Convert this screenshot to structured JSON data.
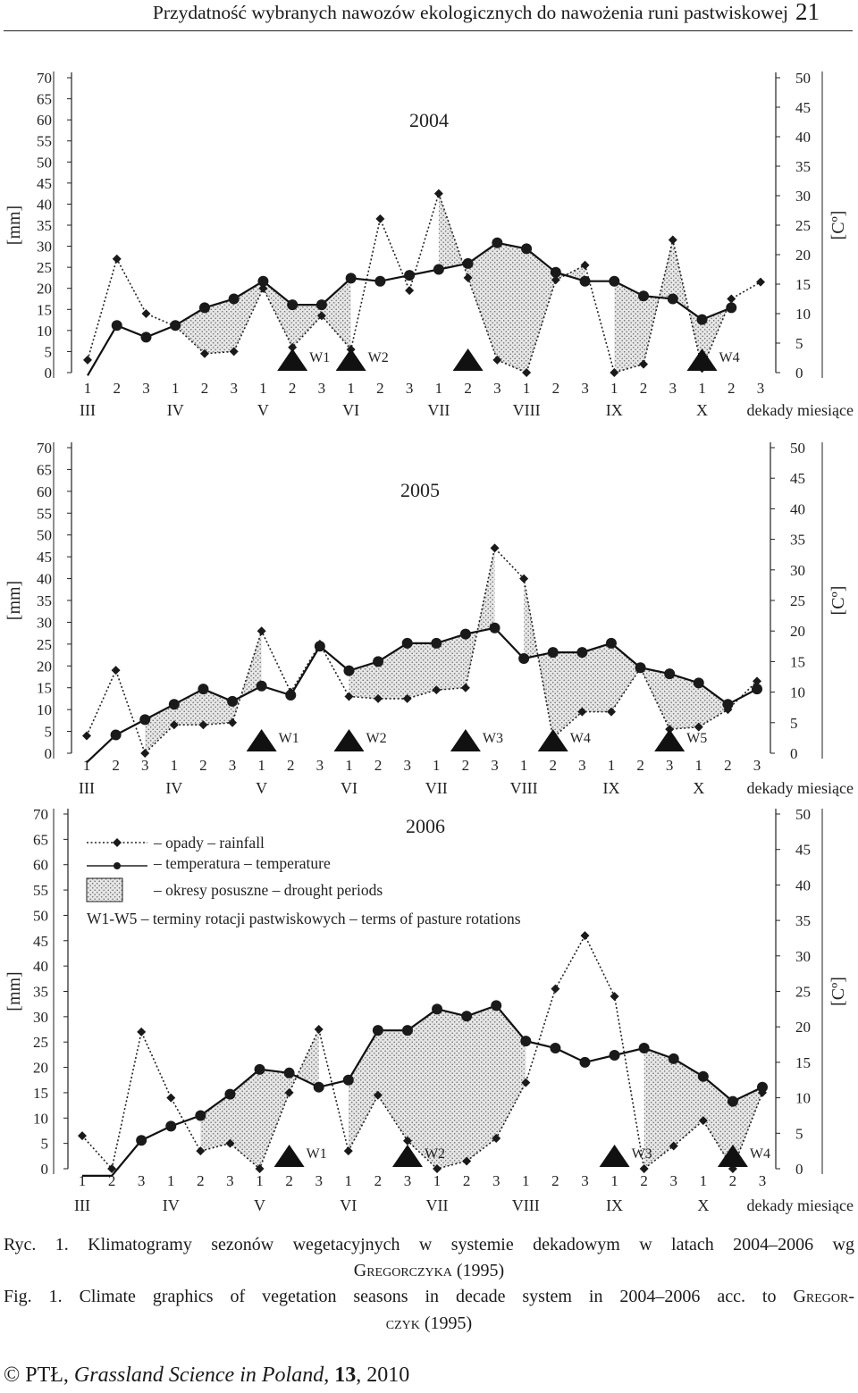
{
  "header": {
    "title": "Przydatność wybranych nawozów ekologicznych do nawożenia runi pastwiskowej",
    "page_number": "21"
  },
  "colors": {
    "ink": "#1a1a1a",
    "drought_fill": "#e4e4e4",
    "drought_dots": "#6a6a6a"
  },
  "icons": {
    "rotation_marker": "triangle-icon"
  },
  "chart_data": [
    {
      "type": "line",
      "title": "2004",
      "ylabel_left": "[mm]",
      "ylabel_right": "[Cº]",
      "ylim_left": [
        0,
        70
      ],
      "ylim_right": [
        0,
        50
      ],
      "yticks_left": [
        0,
        5,
        10,
        15,
        20,
        25,
        30,
        35,
        40,
        45,
        50,
        55,
        60,
        65,
        70
      ],
      "yticks_right": [
        0,
        5,
        10,
        15,
        20,
        25,
        30,
        35,
        40,
        45,
        50
      ],
      "decade_labels": [
        "1",
        "2",
        "3",
        "1",
        "2",
        "3",
        "1",
        "2",
        "3",
        "1",
        "2",
        "3",
        "1",
        "2",
        "3",
        "1",
        "2",
        "3",
        "1",
        "2",
        "3",
        "1",
        "2",
        "3"
      ],
      "month_labels": [
        "III",
        "IV",
        "V",
        "VI",
        "VII",
        "VIII",
        "IX",
        "X"
      ],
      "axis_caption": "dekady miesiące",
      "rainfall_mm": [
        3,
        27,
        14,
        11,
        4.5,
        5,
        20,
        6,
        13.5,
        5.5,
        36.5,
        19.5,
        42.5,
        22.5,
        3,
        0,
        22,
        25.5,
        0,
        2,
        31.5,
        1,
        17.5,
        21.5
      ],
      "temperature_c": [
        -0.5,
        8,
        6,
        8,
        11,
        12.5,
        15.5,
        11.5,
        11.5,
        16,
        15.5,
        16.5,
        17.5,
        18.5,
        22,
        21,
        17,
        15.5,
        15.5,
        13,
        12.5,
        9,
        11,
        null
      ],
      "drought_periods": [
        [
          3,
          9
        ],
        [
          12,
          17
        ],
        [
          18,
          20
        ],
        [
          20,
          22
        ]
      ],
      "rotations": [
        {
          "label": "W1",
          "decade": 7
        },
        {
          "label": "W2",
          "decade": 9
        },
        {
          "label": "",
          "decade": 13
        },
        {
          "label": "W4",
          "decade": 21
        }
      ]
    },
    {
      "type": "line",
      "title": "2005",
      "ylabel_left": "[mm]",
      "ylabel_right": "[Cº]",
      "ylim_left": [
        0,
        70
      ],
      "ylim_right": [
        0,
        50
      ],
      "yticks_left": [
        0,
        5,
        10,
        15,
        20,
        25,
        30,
        35,
        40,
        45,
        50,
        55,
        60,
        65,
        70
      ],
      "yticks_right": [
        0,
        5,
        10,
        15,
        20,
        25,
        30,
        35,
        40,
        45,
        50
      ],
      "decade_labels": [
        "1",
        "2",
        "3",
        "1",
        "2",
        "3",
        "1",
        "2",
        "3",
        "1",
        "2",
        "3",
        "1",
        "2",
        "3",
        "1",
        "2",
        "3",
        "1",
        "2",
        "3",
        "1",
        "2",
        "3"
      ],
      "month_labels": [
        "III",
        "IV",
        "V",
        "VI",
        "VII",
        "VIII",
        "IX",
        "X"
      ],
      "axis_caption": "dekady miesiące",
      "rainfall_mm": [
        4,
        19,
        0,
        6.5,
        6.5,
        7,
        28,
        14,
        25,
        13,
        12.5,
        12.5,
        14.5,
        15,
        47,
        40,
        3.5,
        9.5,
        9.5,
        19.5,
        5.5,
        6,
        10,
        16.5
      ],
      "temperature_c": [
        -1.5,
        3,
        5.5,
        8,
        10.5,
        8.5,
        11,
        9.5,
        17.5,
        13.5,
        15,
        18,
        18,
        19.5,
        20.5,
        15.5,
        16.5,
        16.5,
        18,
        14,
        13,
        11.5,
        8,
        10.5
      ],
      "drought_periods": [
        [
          2,
          6
        ],
        [
          9,
          14
        ],
        [
          15,
          18
        ],
        [
          18,
          22
        ]
      ],
      "rotations": [
        {
          "label": "W1",
          "decade": 6
        },
        {
          "label": "W2",
          "decade": 9
        },
        {
          "label": "W3",
          "decade": 13
        },
        {
          "label": "W4",
          "decade": 16
        },
        {
          "label": "W5",
          "decade": 20
        }
      ]
    },
    {
      "type": "line",
      "title": "2006",
      "ylabel_left": "[mm]",
      "ylabel_right": "[Cº]",
      "ylim_left": [
        0,
        70
      ],
      "ylim_right": [
        0,
        50
      ],
      "yticks_left": [
        0,
        5,
        10,
        15,
        20,
        25,
        30,
        35,
        40,
        45,
        50,
        55,
        60,
        65,
        70
      ],
      "yticks_right": [
        0,
        5,
        10,
        15,
        20,
        25,
        30,
        35,
        40,
        45,
        50
      ],
      "decade_labels": [
        "1",
        "2",
        "3",
        "1",
        "2",
        "3",
        "1",
        "2",
        "3",
        "1",
        "2",
        "3",
        "1",
        "2",
        "3",
        "1",
        "2",
        "3",
        "1",
        "2",
        "3",
        "1",
        "2",
        "3"
      ],
      "month_labels": [
        "III",
        "IV",
        "V",
        "VI",
        "VII",
        "VIII",
        "IX",
        "X"
      ],
      "axis_caption": "dekady miesiące",
      "rainfall_mm": [
        6.5,
        0,
        27,
        14,
        3.5,
        5,
        0,
        15,
        27.5,
        3.5,
        14.5,
        5.5,
        0,
        1.5,
        6,
        17,
        35.5,
        46,
        34,
        0,
        4.5,
        9.5,
        0,
        15
      ],
      "temperature_c": [
        -1,
        -1,
        4,
        6,
        7.5,
        10.5,
        14,
        13.5,
        11.5,
        12.5,
        19.5,
        19.5,
        22.5,
        21.5,
        23,
        18,
        17,
        15,
        16,
        17,
        15.5,
        13,
        9.5,
        11.5
      ],
      "drought_periods": [
        [
          4,
          8
        ],
        [
          9,
          15
        ],
        [
          19,
          23
        ]
      ],
      "rotations": [
        {
          "label": "W1",
          "decade": 7
        },
        {
          "label": "W2",
          "decade": 11
        },
        {
          "label": "W3",
          "decade": 18
        },
        {
          "label": "W4",
          "decade": 22
        }
      ]
    }
  ],
  "legend": {
    "rainfall": "– opady – rainfall",
    "temperature": "– temperatura – temperature",
    "drought": "– okresy posuszne – drought periods",
    "rotations": "W1-W5 – terminy rotacji pastwiskowych – terms of pasture rotations"
  },
  "caption": {
    "pl_line1": "Ryc. 1. Klimatogramy sezonów wegetacyjnych w systemie dekadowym w latach 2004–2006 wg",
    "pl_author": "Gregorczyka",
    "pl_year": " (1995)",
    "en_line1_prefix": "Fig. 1. Climate graphics of vegetation seasons in decade system in 2004–2006 acc. to ",
    "en_author_a": "Gregor-",
    "en_author_b": "czyk",
    "en_year": " (1995)"
  },
  "footer": {
    "copyright": "© PTŁ, ",
    "journal": "Grassland Science in Poland",
    "volume": "13",
    "year": ", 2010"
  }
}
